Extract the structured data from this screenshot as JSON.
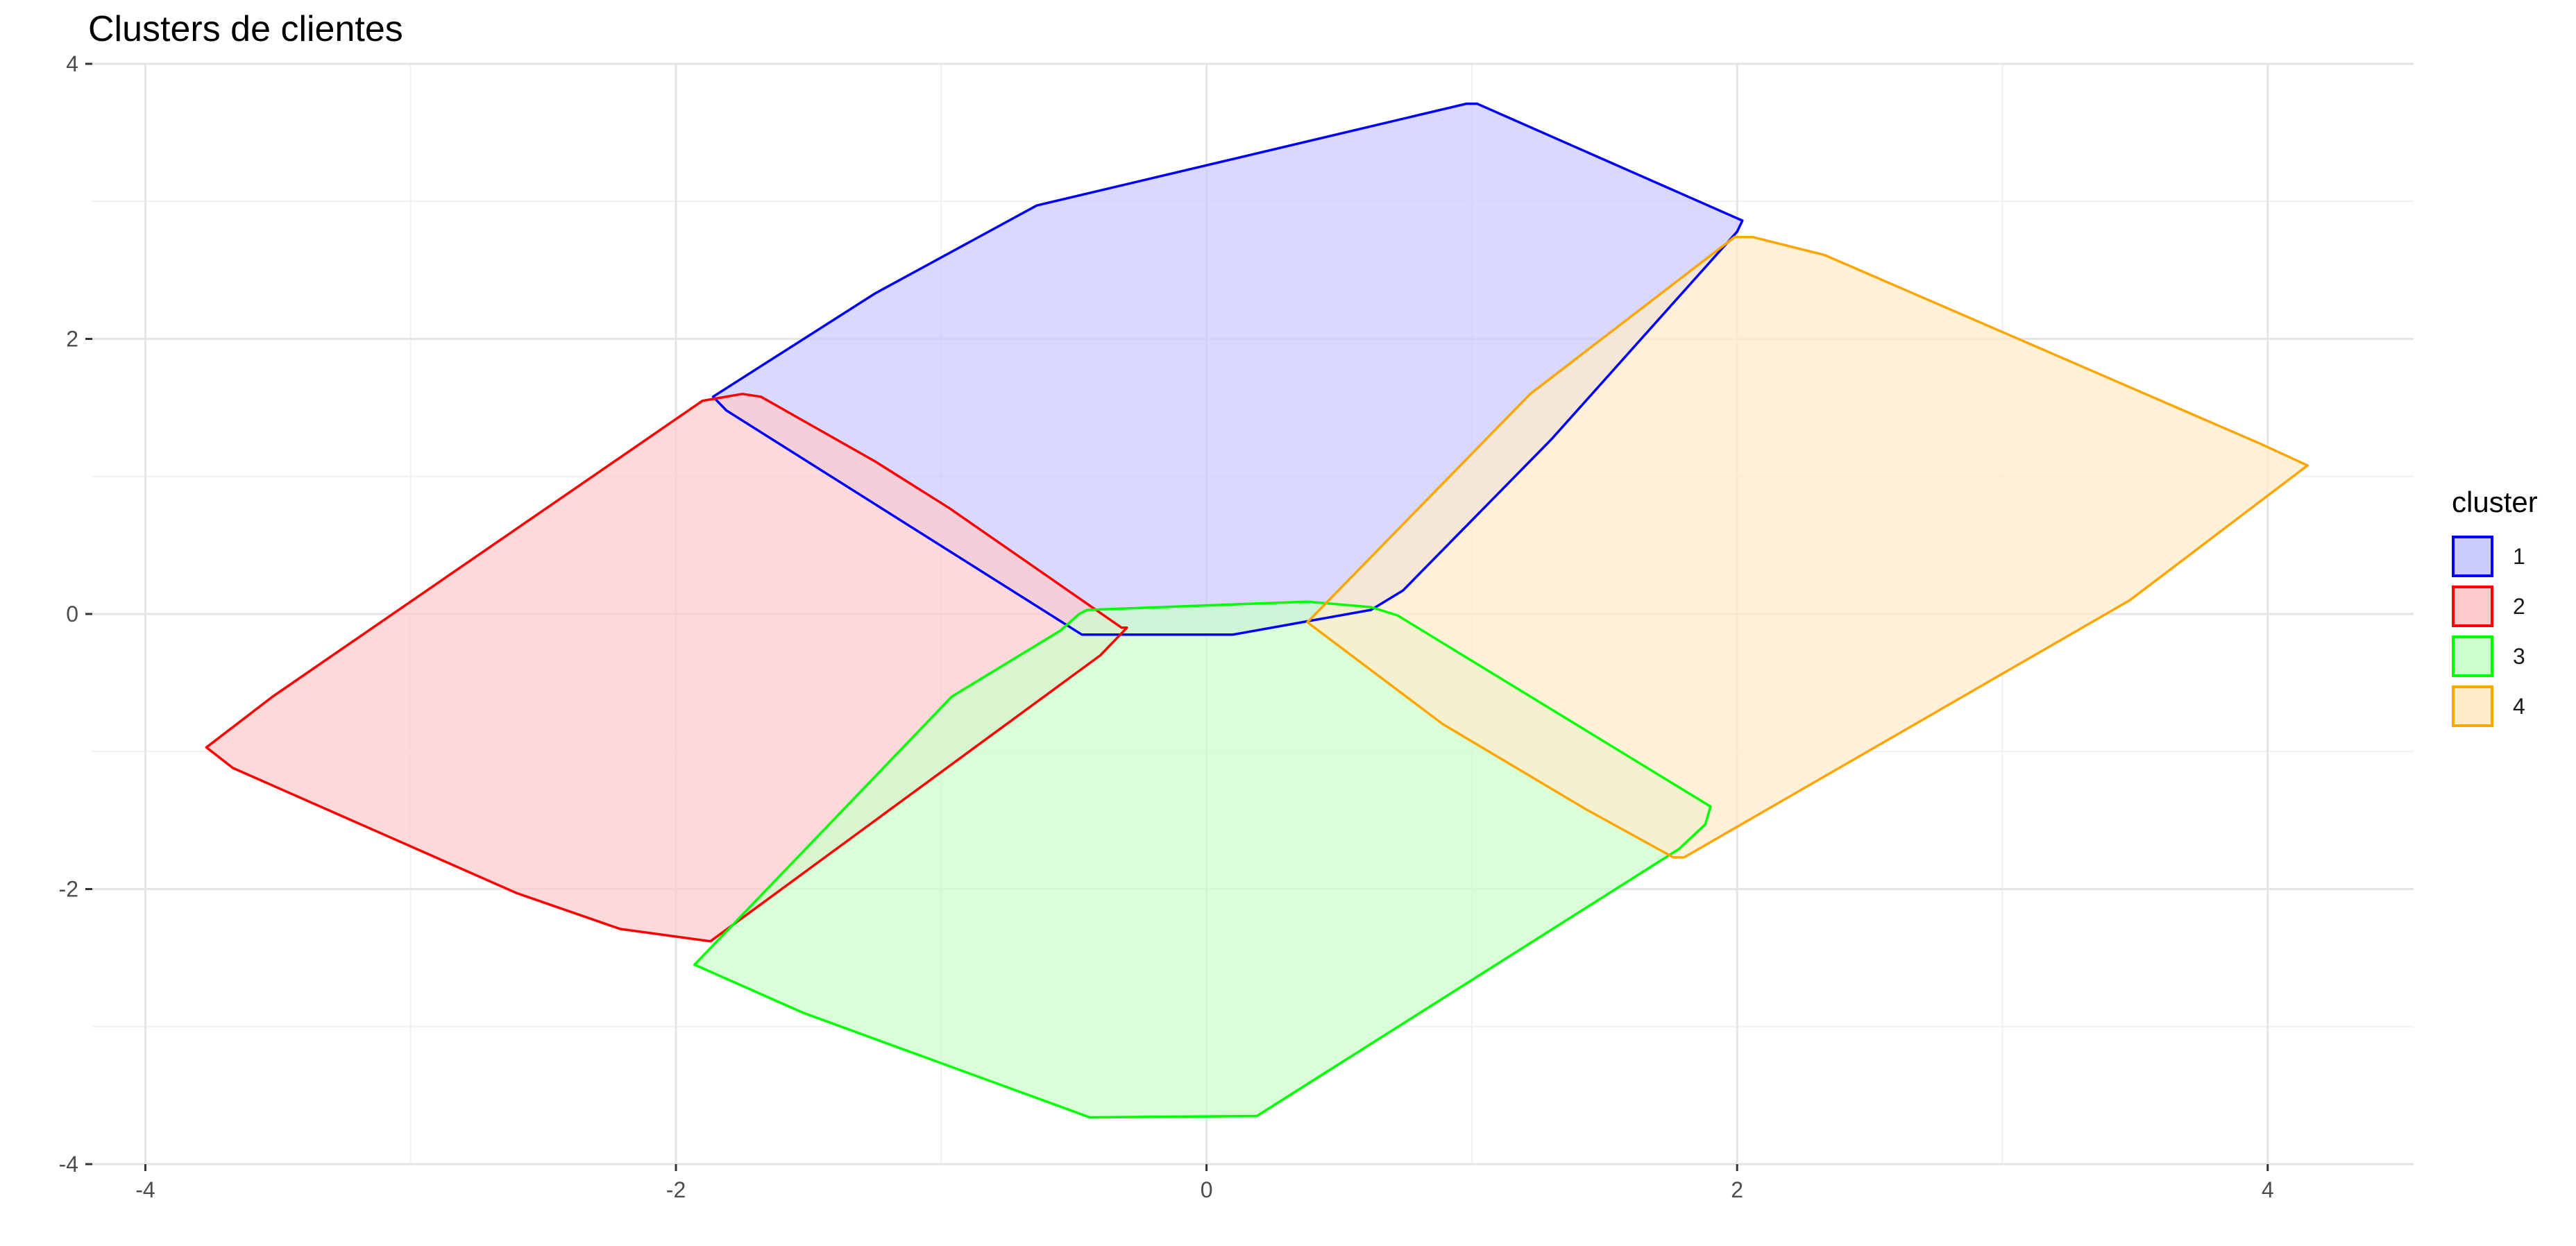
{
  "chart_data": {
    "type": "area",
    "title": "Clusters de clientes",
    "xlabel": "",
    "ylabel": "",
    "xlim": [
      -4.2,
      4.55
    ],
    "ylim": [
      -4.0,
      4.0
    ],
    "x_ticks": [
      -4,
      -2,
      0,
      2,
      4
    ],
    "y_ticks": [
      -4,
      -2,
      0,
      2,
      4
    ],
    "grid": true,
    "legend": {
      "title": "cluster",
      "position": "right"
    },
    "series": [
      {
        "name": "1",
        "stroke": "#0000ff",
        "fill": "#cbcbff",
        "points": [
          [
            -1.86,
            1.58
          ],
          [
            -1.25,
            2.33
          ],
          [
            -0.64,
            2.97
          ],
          [
            0.98,
            3.71
          ],
          [
            1.02,
            3.71
          ],
          [
            2.02,
            2.86
          ],
          [
            2.0,
            2.78
          ],
          [
            1.3,
            1.27
          ],
          [
            0.74,
            0.17
          ],
          [
            0.62,
            0.03
          ],
          [
            0.1,
            -0.15
          ],
          [
            -0.47,
            -0.15
          ],
          [
            -1.81,
            1.48
          ]
        ]
      },
      {
        "name": "2",
        "stroke": "#ff0000",
        "fill": "#fccaca",
        "points": [
          [
            -3.77,
            -0.97
          ],
          [
            -3.52,
            -0.6
          ],
          [
            -1.9,
            1.55
          ],
          [
            -1.75,
            1.6
          ],
          [
            -1.68,
            1.58
          ],
          [
            -1.25,
            1.11
          ],
          [
            -0.97,
            0.77
          ],
          [
            -0.32,
            -0.1
          ],
          [
            -0.3,
            -0.1
          ],
          [
            -0.4,
            -0.3
          ],
          [
            -1.87,
            -2.38
          ],
          [
            -2.21,
            -2.29
          ],
          [
            -2.6,
            -2.03
          ],
          [
            -3.67,
            -1.12
          ]
        ]
      },
      {
        "name": "3",
        "stroke": "#00ff00",
        "fill": "#cbffcb",
        "points": [
          [
            -1.93,
            -2.55
          ],
          [
            -0.96,
            -0.6
          ],
          [
            -0.55,
            -0.12
          ],
          [
            -0.48,
            0.0
          ],
          [
            -0.45,
            0.03
          ],
          [
            0.38,
            0.09
          ],
          [
            0.62,
            0.05
          ],
          [
            0.72,
            -0.01
          ],
          [
            1.9,
            -1.4
          ],
          [
            1.88,
            -1.53
          ],
          [
            1.78,
            -1.71
          ],
          [
            0.19,
            -3.65
          ],
          [
            -0.44,
            -3.66
          ],
          [
            -1.52,
            -2.9
          ]
        ]
      },
      {
        "name": "4",
        "stroke": "#ffa500",
        "fill": "#ffecc9",
        "points": [
          [
            0.38,
            -0.06
          ],
          [
            1.22,
            1.6
          ],
          [
            1.99,
            2.74
          ],
          [
            2.06,
            2.74
          ],
          [
            2.33,
            2.61
          ],
          [
            3.97,
            1.24
          ],
          [
            4.15,
            1.08
          ],
          [
            3.48,
            0.1
          ],
          [
            1.8,
            -1.77
          ],
          [
            1.76,
            -1.77
          ],
          [
            1.43,
            -1.42
          ],
          [
            0.89,
            -0.8
          ]
        ]
      }
    ]
  }
}
